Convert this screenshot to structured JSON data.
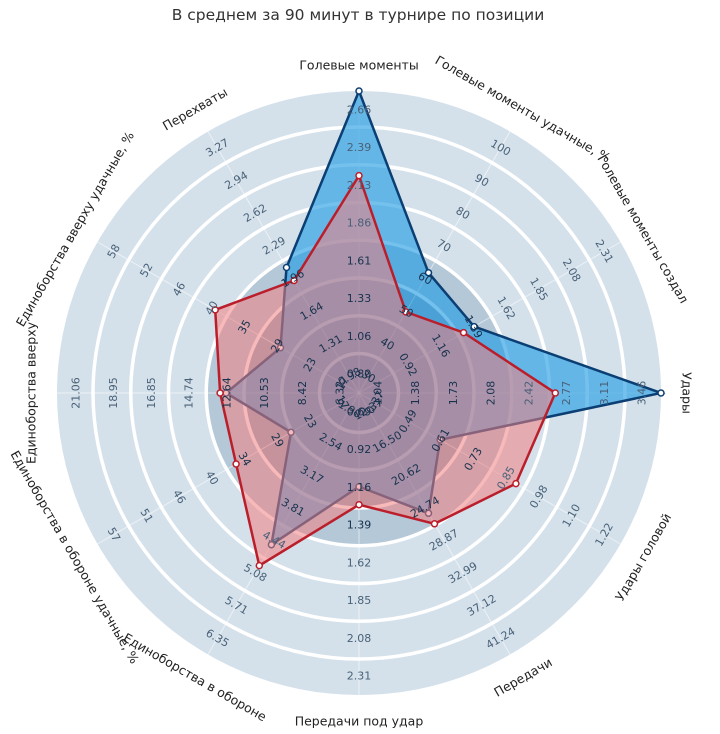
{
  "chart_data": {
    "type": "radar",
    "title": "В среднем за 90 минут в турнире по позиции",
    "colors": {
      "ring_band": "#d4e1eb",
      "ring_gap": "#ffffff",
      "series_blue_fill": "#1e9be3",
      "series_blue_line": "#0b3f73",
      "series_red_fill": "#f08080",
      "series_red_line": "#bb1e2b"
    },
    "axes": [
      {
        "label": "Голевые моменты",
        "angle": 0,
        "ticks": [
          "0.80",
          "1.06",
          "1.33",
          "1.61",
          "1.86",
          "2.13",
          "2.39",
          "2.66"
        ]
      },
      {
        "label": "Голевые моменты удачные, %",
        "angle": 30,
        "ticks": [
          "30",
          "40",
          "50",
          "60",
          "70",
          "80",
          "90",
          "100"
        ]
      },
      {
        "label": "Голевые моменты создал",
        "angle": 60,
        "ticks": [
          "0.92",
          "1.16",
          "1.39",
          "1.62",
          "1.85",
          "2.08",
          "2.31"
        ]
      },
      {
        "label": "Удары",
        "angle": 90,
        "ticks": [
          "1.04",
          "1.38",
          "1.73",
          "2.08",
          "2.42",
          "2.77",
          "3.11",
          "3.46"
        ]
      },
      {
        "label": "Удары головой",
        "angle": 120,
        "ticks": [
          "0.37",
          "0.49",
          "0.61",
          "0.73",
          "0.85",
          "0.98",
          "1.10",
          "1.22"
        ]
      },
      {
        "label": "Передачи",
        "angle": 150,
        "ticks": [
          "12.37",
          "16.50",
          "20.62",
          "24.74",
          "28.87",
          "32.99",
          "37.12",
          "41.24"
        ]
      },
      {
        "label": "Передачи под удар",
        "angle": 180,
        "ticks": [
          "0.69",
          "0.92",
          "1.16",
          "1.39",
          "1.62",
          "1.85",
          "2.08",
          "2.31"
        ]
      },
      {
        "label": "Единоборства в обороне",
        "angle": 210,
        "ticks": [
          "1.90",
          "2.54",
          "3.17",
          "3.81",
          "4.44",
          "5.08",
          "5.71",
          "6.35"
        ]
      },
      {
        "label": "Единоборства в обороне удачные, %",
        "angle": 240,
        "ticks": [
          "17",
          "23",
          "29",
          "34",
          "40",
          "46",
          "51",
          "57"
        ]
      },
      {
        "label": "Единоборства вверху",
        "angle": 270,
        "ticks": [
          "6.32",
          "8.42",
          "10.53",
          "12.64",
          "14.74",
          "16.85",
          "18.95",
          "21.06"
        ]
      },
      {
        "label": "Единоборства вверху удачные, %",
        "angle": 300,
        "ticks": [
          "17",
          "23",
          "29",
          "35",
          "40",
          "46",
          "52",
          "58"
        ]
      },
      {
        "label": "Перехваты",
        "angle": 330,
        "ticks": [
          "0.98",
          "1.31",
          "1.64",
          "1.96",
          "2.29",
          "2.62",
          "2.94",
          "3.27"
        ]
      }
    ],
    "series": [
      {
        "color": "blue",
        "r": [
          1.0,
          0.46,
          0.44,
          1.0,
          0.31,
          0.46,
          0.31,
          0.58,
          0.26,
          0.44,
          0.3,
          0.48
        ]
      },
      {
        "color": "red",
        "r": [
          0.72,
          0.31,
          0.4,
          0.65,
          0.6,
          0.5,
          0.37,
          0.66,
          0.47,
          0.46,
          0.55,
          0.43
        ]
      }
    ]
  }
}
